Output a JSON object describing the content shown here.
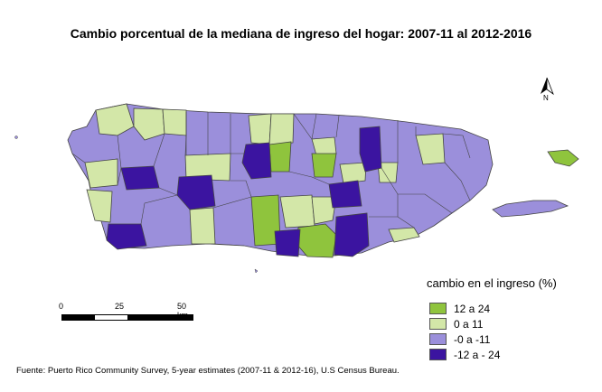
{
  "title": "Cambio porcentual de la mediana de ingreso del hogar: 2007-11 al 2012-2016",
  "legend": {
    "title": "cambio en el ingreso (%)",
    "items": [
      {
        "label": "12  a 24",
        "color": "#8fc43d"
      },
      {
        "label": "0  a 11",
        "color": "#d3e7a8"
      },
      {
        "label": "-0  a -11",
        "color": "#9b8fdb"
      },
      {
        "label": "-12  a - 24",
        "color": "#3b14a0"
      }
    ]
  },
  "scale": {
    "tick_0": "0",
    "tick_25": "25",
    "tick_50": "50 km"
  },
  "north_label": "N",
  "source": "Fuente: Puerto Rico Community Survey, 5-year estimates (2007-11 & 2012-16), U.S Census Bureau.",
  "colors": {
    "outline": "#444444",
    "island_fill": "#9b8fdb"
  }
}
